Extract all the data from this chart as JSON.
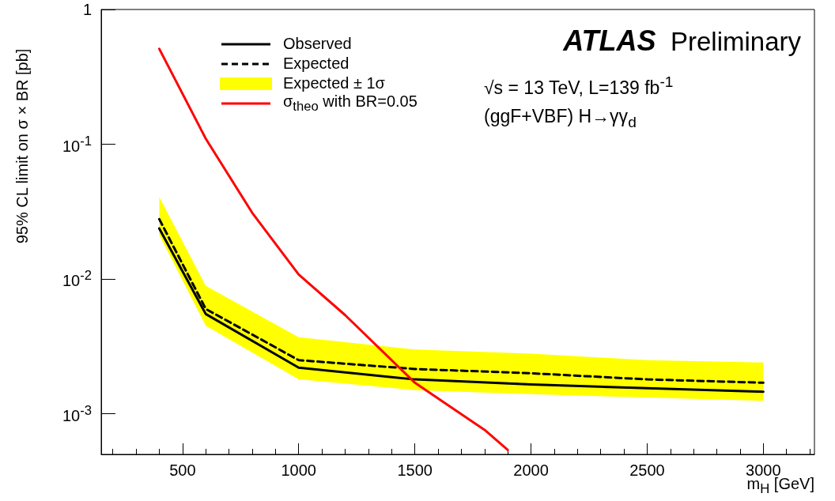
{
  "chart_data": {
    "type": "line",
    "title": "ATLAS Preliminary",
    "xlabel": "m$_{H}$ [GeV]",
    "ylabel": "95% CL limit on σ × BR [pb]",
    "annotations": [
      "Expected ± 1σ",
      "√s = 13 TeV, L=139 fb$^{-1}$",
      "(ggF+VBF) H→γγ$_{d}$"
    ],
    "log": "y",
    "xlim": [
      150,
      3220
    ],
    "xticks": [
      500,
      1000,
      1500,
      2000,
      2500,
      3000
    ],
    "ylim": [
      0.0005,
      1
    ],
    "yticks": [
      {
        "value": 0.001,
        "label": "10$^{-3}$"
      },
      {
        "value": 0.01,
        "label": "10$^{-2}$"
      },
      {
        "value": 0.1,
        "label": "10$^{-1}$"
      },
      1
    ],
    "grid": false,
    "legend": "top left",
    "marker": "none",
    "series": [
      {
        "name": "Observed",
        "color": "#000000",
        "line_style": "solid",
        "x": [
          400,
          600,
          1000,
          1500,
          2000,
          2500,
          3000
        ],
        "values": [
          0.0237,
          0.0055,
          0.0022,
          0.0018,
          0.00165,
          0.00155,
          0.00146
        ]
      },
      {
        "name": "Expected",
        "color": "#000000",
        "line_style": "dashed",
        "x": [
          400,
          600,
          1000,
          1500,
          2000,
          2500,
          3000
        ],
        "values": [
          0.0278,
          0.006,
          0.0025,
          0.00215,
          0.002,
          0.0018,
          0.0017
        ],
        "lower": [
          0.0212,
          0.0045,
          0.0018,
          0.0015,
          0.0014,
          0.00132,
          0.00125
        ],
        "upper": [
          0.0406,
          0.0089,
          0.0037,
          0.003,
          0.0028,
          0.0025,
          0.0024
        ]
      },
      {
        "name": "σ$_{theo}$ with BR=0.05",
        "color": "#ff0000",
        "line_style": "solid",
        "x": [
          400,
          600,
          800,
          1000,
          1200,
          1500,
          1800,
          1900
        ],
        "values": [
          0.51,
          0.11,
          0.031,
          0.0108,
          0.0054,
          0.0017,
          0.00076,
          0.00054
        ]
      }
    ]
  }
}
